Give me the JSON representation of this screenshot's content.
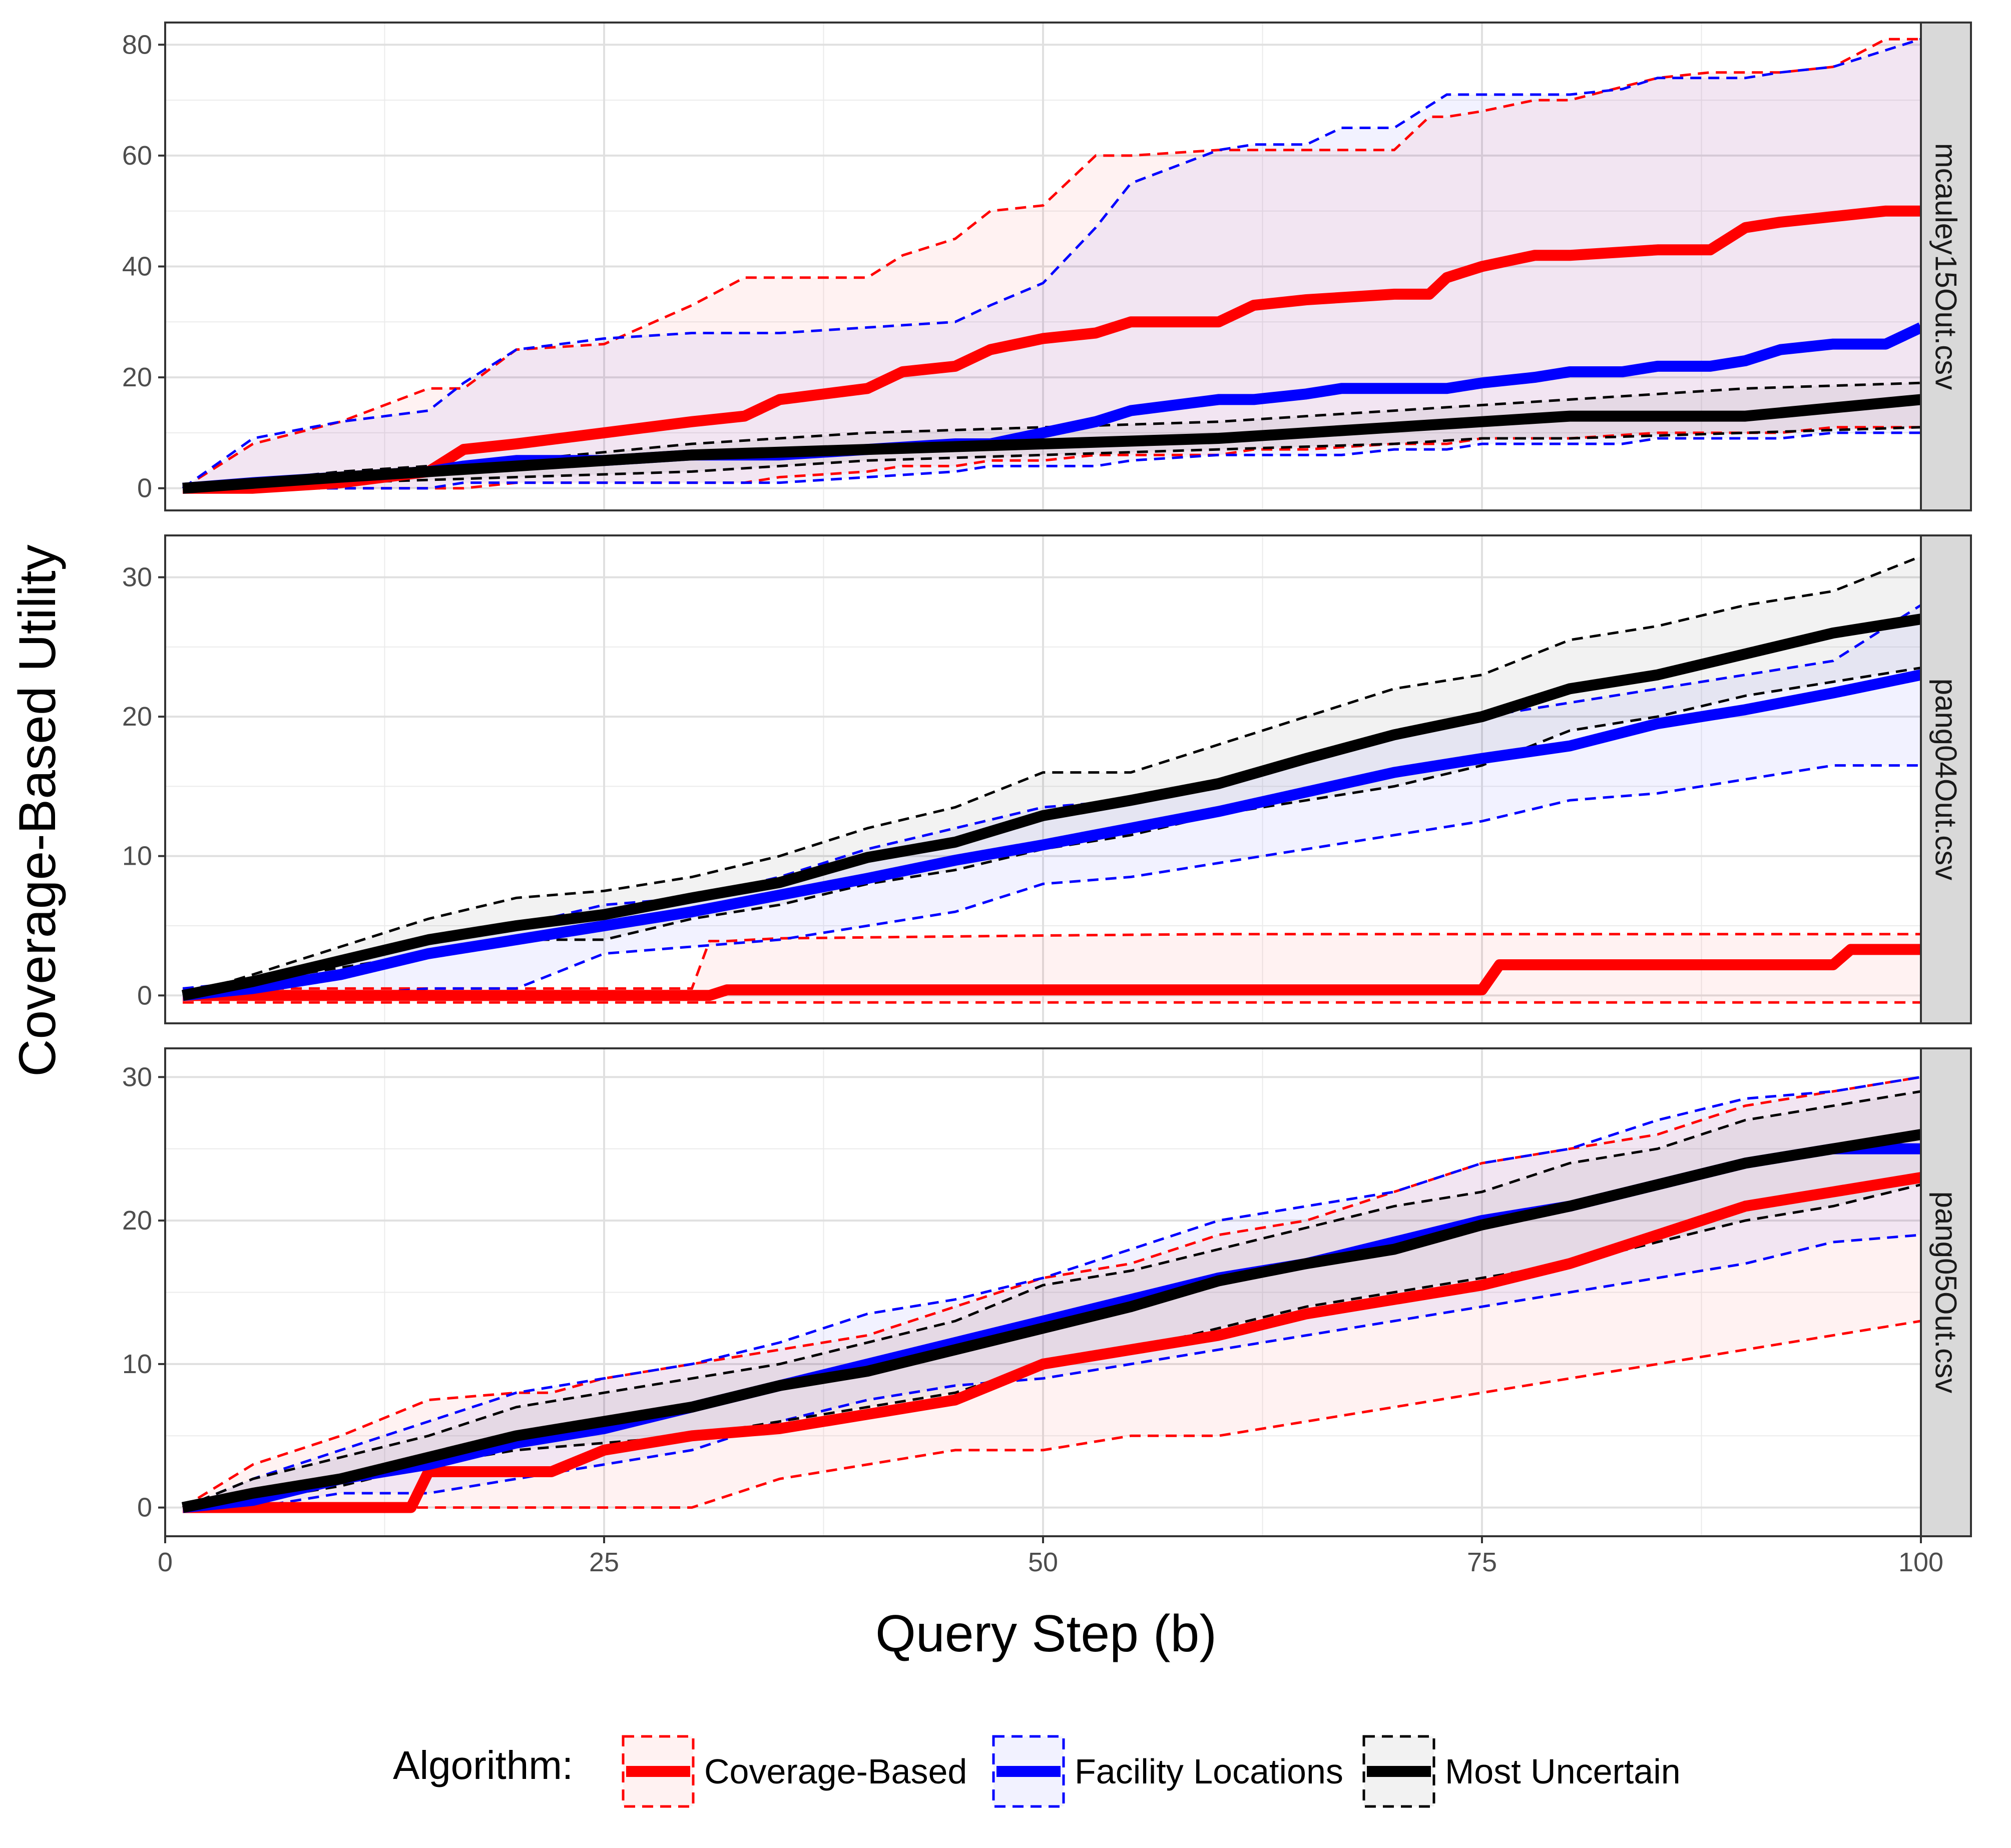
{
  "figure": {
    "xlabel": "Query Step (b)",
    "ylabel": "Coverage-Based Utility",
    "legend_title": "Algorithm:",
    "legend_position": "bottom",
    "grid": true
  },
  "chart_data": [
    {
      "type": "line",
      "panel": "mcauley15Out.csv",
      "xlim": [
        0,
        100
      ],
      "ylim": [
        -4,
        84
      ],
      "xticks": [
        0,
        25,
        50,
        75,
        100
      ],
      "yticks": [
        0,
        20,
        40,
        60,
        80
      ],
      "series": [
        {
          "name": "Coverage-Based",
          "color": "#ff0000",
          "x": [
            1,
            5,
            10,
            15,
            17,
            20,
            25,
            30,
            33,
            35,
            40,
            42,
            45,
            47,
            50,
            53,
            55,
            60,
            62,
            65,
            70,
            72,
            73,
            75,
            78,
            80,
            85,
            88,
            90,
            92,
            95,
            98,
            100
          ],
          "mean": [
            0,
            0,
            1,
            3,
            7,
            8,
            10,
            12,
            13,
            16,
            18,
            21,
            22,
            25,
            27,
            28,
            30,
            30,
            33,
            34,
            35,
            35,
            38,
            40,
            42,
            42,
            43,
            43,
            47,
            48,
            49,
            50,
            50
          ],
          "upper": [
            0,
            8,
            12,
            18,
            18,
            25,
            26,
            33,
            38,
            38,
            38,
            42,
            45,
            50,
            51,
            60,
            60,
            61,
            61,
            61,
            61,
            67,
            67,
            68,
            70,
            70,
            74,
            75,
            75,
            75,
            76,
            81,
            81
          ],
          "lower": [
            0,
            0,
            0,
            0,
            0,
            1,
            1,
            1,
            1,
            2,
            3,
            4,
            4,
            5,
            5,
            6,
            6,
            6,
            7,
            7,
            8,
            8,
            8,
            9,
            9,
            9,
            10,
            10,
            10,
            10,
            11,
            11,
            11
          ]
        },
        {
          "name": "Facility Locations",
          "color": "#0000ff",
          "x": [
            1,
            5,
            10,
            15,
            17,
            20,
            25,
            30,
            35,
            40,
            45,
            47,
            50,
            53,
            55,
            60,
            62,
            65,
            67,
            70,
            73,
            75,
            78,
            80,
            83,
            85,
            88,
            90,
            92,
            95,
            98,
            100
          ],
          "mean": [
            0,
            1,
            2,
            3,
            4,
            5,
            5,
            6,
            6,
            7,
            8,
            8,
            10,
            12,
            14,
            16,
            16,
            17,
            18,
            18,
            18,
            19,
            20,
            21,
            21,
            22,
            22,
            23,
            25,
            26,
            26,
            29
          ],
          "upper": [
            0,
            9,
            12,
            14,
            19,
            25,
            27,
            28,
            28,
            29,
            30,
            33,
            37,
            47,
            55,
            61,
            62,
            62,
            65,
            65,
            71,
            71,
            71,
            71,
            72,
            74,
            74,
            74,
            75,
            76,
            79,
            81
          ],
          "lower": [
            0,
            0,
            0,
            0,
            1,
            1,
            1,
            1,
            1,
            2,
            3,
            4,
            4,
            4,
            5,
            6,
            6,
            6,
            6,
            7,
            7,
            8,
            8,
            8,
            8,
            9,
            9,
            9,
            9,
            10,
            10,
            10
          ]
        },
        {
          "name": "Most Uncertain",
          "color": "#000000",
          "x": [
            1,
            10,
            20,
            30,
            40,
            50,
            60,
            70,
            75,
            80,
            90,
            100
          ],
          "mean": [
            0,
            2,
            4,
            6,
            7,
            8,
            9,
            11,
            12,
            13,
            13,
            16
          ],
          "upper": [
            0,
            3,
            5,
            8,
            10,
            11,
            12,
            14,
            15,
            16,
            18,
            19
          ],
          "lower": [
            0,
            1,
            2,
            3,
            5,
            6,
            7,
            8,
            9,
            9,
            10,
            11
          ]
        }
      ]
    },
    {
      "type": "line",
      "panel": "pang04Out.csv",
      "xlim": [
        0,
        100
      ],
      "ylim": [
        -2,
        33
      ],
      "xticks": [
        0,
        25,
        50,
        75,
        100
      ],
      "yticks": [
        0,
        10,
        20,
        30
      ],
      "series": [
        {
          "name": "Coverage-Based",
          "color": "#ff0000",
          "x": [
            1,
            5,
            10,
            20,
            30,
            31,
            32,
            35,
            50,
            60,
            70,
            75,
            76,
            80,
            90,
            95,
            96,
            100
          ],
          "mean": [
            0,
            0,
            0,
            0,
            0,
            0,
            0.4,
            0.4,
            0.4,
            0.4,
            0.4,
            0.4,
            2.2,
            2.2,
            2.2,
            2.2,
            3.3,
            3.3
          ],
          "upper": [
            0.5,
            0.5,
            0.5,
            0.5,
            0.5,
            3.9,
            3.9,
            4.1,
            4.3,
            4.4,
            4.4,
            4.4,
            4.4,
            4.4,
            4.4,
            4.4,
            4.4,
            4.4
          ],
          "lower": [
            -0.5,
            -0.5,
            -0.5,
            -0.5,
            -0.5,
            -0.5,
            -0.5,
            -0.5,
            -0.5,
            -0.5,
            -0.5,
            -0.5,
            -0.5,
            -0.5,
            -0.5,
            -0.5,
            -0.5,
            -0.5
          ]
        },
        {
          "name": "Facility Locations",
          "color": "#0000ff",
          "x": [
            1,
            5,
            10,
            15,
            20,
            25,
            30,
            35,
            40,
            45,
            50,
            55,
            60,
            65,
            70,
            75,
            80,
            85,
            90,
            95,
            100
          ],
          "mean": [
            0,
            0.5,
            1.5,
            3,
            4,
            5,
            6,
            7.2,
            8.4,
            9.7,
            10.8,
            12,
            13.2,
            14.6,
            16,
            17,
            17.9,
            19.5,
            20.5,
            21.7,
            23
          ],
          "upper": [
            0.5,
            1,
            2.5,
            4,
            5,
            6.5,
            7,
            8.5,
            10.5,
            12,
            13.5,
            14,
            15.5,
            17,
            19,
            20,
            21,
            22,
            23,
            24,
            28
          ],
          "lower": [
            0,
            0,
            0,
            0.5,
            0.5,
            3,
            3.5,
            4,
            5,
            6,
            8,
            8.5,
            9.5,
            10.5,
            11.5,
            12.5,
            14,
            14.5,
            15.5,
            16.5,
            16.5
          ]
        },
        {
          "name": "Most Uncertain",
          "color": "#000000",
          "x": [
            1,
            5,
            10,
            15,
            20,
            25,
            30,
            35,
            40,
            45,
            50,
            55,
            60,
            65,
            70,
            75,
            80,
            85,
            90,
            95,
            100
          ],
          "mean": [
            0,
            1,
            2.5,
            4,
            5,
            5.8,
            7,
            8.1,
            9.9,
            11,
            12.9,
            14,
            15.2,
            17,
            18.7,
            20,
            22,
            23,
            24.5,
            26,
            27
          ],
          "upper": [
            0,
            1.5,
            3.5,
            5.5,
            7,
            7.5,
            8.5,
            10,
            12,
            13.5,
            16,
            16,
            18,
            20,
            22,
            23,
            25.5,
            26.5,
            28,
            29,
            31.5
          ],
          "lower": [
            0,
            1,
            2,
            3,
            4,
            4,
            5.5,
            6.5,
            8,
            9,
            10.5,
            11.5,
            13,
            14,
            15,
            16.5,
            19,
            20,
            21.5,
            22.5,
            23.5
          ]
        }
      ]
    },
    {
      "type": "line",
      "panel": "pang05Out.csv",
      "xlim": [
        0,
        100
      ],
      "ylim": [
        -2,
        32
      ],
      "xticks": [
        0,
        25,
        50,
        75,
        100
      ],
      "yticks": [
        0,
        10,
        20,
        30
      ],
      "series": [
        {
          "name": "Coverage-Based",
          "color": "#ff0000",
          "x": [
            1,
            5,
            10,
            14,
            15,
            20,
            22,
            25,
            30,
            35,
            40,
            45,
            50,
            55,
            60,
            65,
            70,
            75,
            80,
            85,
            90,
            95,
            100
          ],
          "mean": [
            0,
            0,
            0,
            0,
            2.5,
            2.5,
            2.5,
            4,
            5,
            5.5,
            6.5,
            7.5,
            10,
            11,
            12,
            13.5,
            14.5,
            15.5,
            17,
            19,
            21,
            22,
            23
          ],
          "upper": [
            0,
            3,
            5,
            7,
            7.5,
            8,
            8,
            9,
            10,
            11,
            12,
            14,
            16,
            17,
            19,
            20,
            22,
            24,
            25,
            26,
            28,
            29,
            30
          ],
          "lower": [
            0,
            0,
            0,
            0,
            0,
            0,
            0,
            0,
            0,
            2,
            3,
            4,
            4,
            5,
            5,
            6,
            7,
            8,
            9,
            10,
            11,
            12,
            13
          ]
        },
        {
          "name": "Facility Locations",
          "color": "#0000ff",
          "x": [
            1,
            5,
            10,
            15,
            20,
            25,
            30,
            35,
            40,
            45,
            50,
            55,
            60,
            65,
            70,
            75,
            80,
            85,
            90,
            95,
            100
          ],
          "mean": [
            0,
            0.5,
            2,
            3,
            4.5,
            5.5,
            7,
            8.5,
            10,
            11.5,
            13,
            14.5,
            16,
            17,
            18.5,
            20,
            21,
            22.5,
            24,
            25,
            25
          ],
          "upper": [
            0,
            2,
            4,
            6,
            8,
            9,
            10,
            11.5,
            13.5,
            14.5,
            16,
            18,
            20,
            21,
            22,
            24,
            25,
            27,
            28.5,
            29,
            30
          ],
          "lower": [
            0,
            0,
            1,
            1,
            2,
            3,
            4,
            6,
            7.5,
            8.5,
            9,
            10,
            11,
            12,
            13,
            14,
            15,
            16,
            17,
            18.5,
            19
          ]
        },
        {
          "name": "Most Uncertain",
          "color": "#000000",
          "x": [
            1,
            5,
            10,
            15,
            20,
            25,
            30,
            35,
            40,
            45,
            50,
            55,
            60,
            65,
            70,
            75,
            80,
            85,
            90,
            95,
            100
          ],
          "mean": [
            0,
            1,
            2,
            3.5,
            5,
            6,
            7,
            8.5,
            9.5,
            11,
            12.5,
            14,
            15.8,
            17,
            18,
            19.7,
            21,
            22.5,
            24,
            25,
            26
          ],
          "upper": [
            0,
            2,
            3.5,
            5,
            7,
            8,
            9,
            10,
            11.5,
            13,
            15.5,
            16.5,
            18,
            19.5,
            21,
            22,
            24,
            25,
            27,
            28,
            29
          ],
          "lower": [
            0,
            0.5,
            1.5,
            3,
            4,
            4.5,
            5,
            6,
            7,
            8,
            10,
            11,
            12.5,
            14,
            15,
            16,
            17,
            18.5,
            20,
            21,
            22.5
          ]
        }
      ]
    }
  ]
}
